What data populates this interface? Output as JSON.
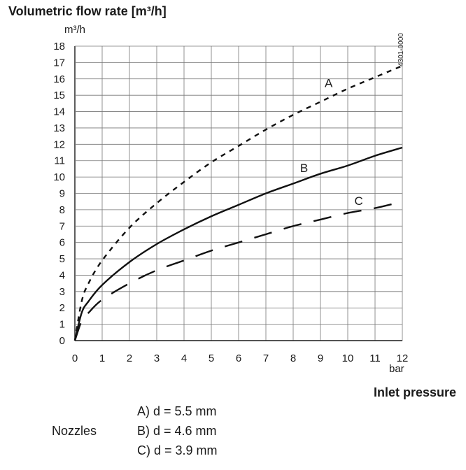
{
  "chart_data": {
    "type": "line",
    "title": "Volumetric flow rate [m³/h]",
    "ylabel": "m³/h",
    "xlabel": "bar",
    "x_title": "Inlet pressure",
    "xlim": [
      0,
      12
    ],
    "ylim": [
      0,
      18
    ],
    "x_ticks": [
      "0",
      "1",
      "2",
      "3",
      "4",
      "5",
      "6",
      "7",
      "8",
      "9",
      "10",
      "11",
      "12"
    ],
    "y_ticks": [
      "0",
      "1",
      "2",
      "3",
      "4",
      "5",
      "6",
      "7",
      "8",
      "9",
      "10",
      "11",
      "12",
      "13",
      "14",
      "15",
      "16",
      "17",
      "18"
    ],
    "grid": true,
    "figure_code": "4301-0000",
    "series": [
      {
        "name": "A",
        "style": "dashed-short",
        "x": [
          0,
          0.25,
          0.5,
          1,
          2,
          3,
          4,
          5,
          6,
          7,
          8,
          9,
          10,
          11,
          12
        ],
        "y": [
          0,
          2.4,
          3.5,
          4.9,
          6.9,
          8.4,
          9.7,
          10.9,
          11.9,
          12.9,
          13.8,
          14.6,
          15.4,
          16.1,
          16.8
        ]
      },
      {
        "name": "B",
        "style": "solid",
        "x": [
          0,
          0.25,
          0.5,
          1,
          2,
          3,
          4,
          5,
          6,
          7,
          8,
          9,
          10,
          11,
          12
        ],
        "y": [
          0,
          1.7,
          2.4,
          3.4,
          4.8,
          5.9,
          6.8,
          7.6,
          8.3,
          9.0,
          9.6,
          10.2,
          10.7,
          11.3,
          11.8
        ]
      },
      {
        "name": "C",
        "style": "dashed-long",
        "x": [
          0,
          0.25,
          0.5,
          1,
          2,
          3,
          4,
          5,
          6,
          7,
          8,
          9,
          10,
          11,
          12
        ],
        "y": [
          0,
          1.2,
          1.7,
          2.5,
          3.5,
          4.3,
          4.9,
          5.5,
          6.0,
          6.5,
          7.0,
          7.4,
          7.8,
          8.1,
          8.5
        ]
      }
    ],
    "curve_labels": [
      {
        "text": "A",
        "x": 9.3,
        "y": 15.5
      },
      {
        "text": "B",
        "x": 8.4,
        "y": 10.3
      },
      {
        "text": "C",
        "x": 10.4,
        "y": 8.3
      }
    ]
  },
  "x_axis_title": "Inlet pressure",
  "nozzles": {
    "title": "Nozzles",
    "items": [
      "A) d = 5.5 mm",
      "B) d = 4.6 mm",
      "C) d = 3.9 mm"
    ]
  }
}
